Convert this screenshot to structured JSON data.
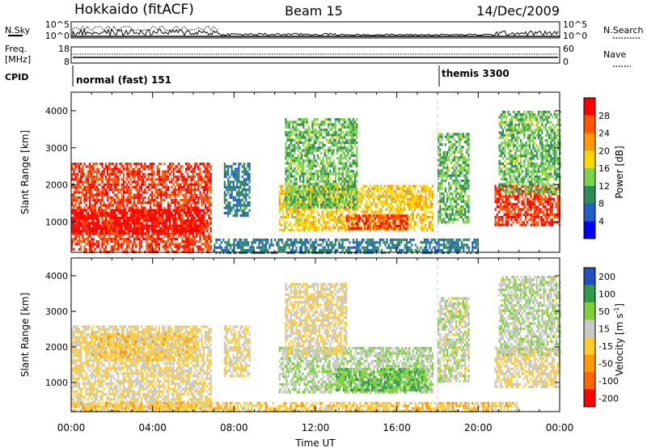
{
  "header": {
    "station": "Hokkaido (fitACF)",
    "beam": "Beam 15",
    "date": "14/Dec/2009"
  },
  "top_panels": {
    "nsky_label": "N.Sky",
    "nsky_ticks": [
      "10^5",
      "10^0"
    ],
    "nsearch_label": "N.Search",
    "nsearch_ticks": [
      "10^5",
      "10^0"
    ],
    "freq_label_line1": "Freq.",
    "freq_label_line2": "[MHz]",
    "freq_ticks": [
      "18",
      "8"
    ],
    "nave_label": "Nave",
    "nave_ticks": [
      "60",
      "0"
    ],
    "cpid_label": "CPID",
    "cpid_modes": [
      {
        "name": "normal (fast) 151",
        "start_hour": 0
      },
      {
        "name": "themis 3300",
        "start_hour": 18
      }
    ]
  },
  "colors": {
    "power_scale": [
      "#0000ff",
      "#1f5fc8",
      "#2e8b57",
      "#7cd24a",
      "#ffd700",
      "#ff9900",
      "#ff5500",
      "#ff0000"
    ],
    "velocity_scale": [
      "#ff0000",
      "#ff6600",
      "#ff9900",
      "#ffcc33",
      "#c8c8c8",
      "#7ed03a",
      "#2e9b4a",
      "#2550c0"
    ],
    "ground_scatter": "#c0c0c0",
    "frame": "#000000"
  },
  "chart_data": [
    {
      "type": "heatmap",
      "name": "power",
      "xlabel": "Time UT",
      "ylabel": "Slant Range [km]",
      "xlim": [
        0,
        24
      ],
      "ylim": [
        180,
        4500
      ],
      "x_ticks": [
        "00:00",
        "04:00",
        "08:00",
        "12:00",
        "16:00",
        "20:00",
        "00:00"
      ],
      "y_ticks": [
        1000,
        2000,
        3000,
        4000
      ],
      "colorbar_label": "Power [dB]",
      "colorbar_ticks": [
        "4",
        "8",
        "12",
        "16",
        "20",
        "24",
        "28"
      ],
      "colorbar_range": [
        0,
        30
      ],
      "regions": [
        {
          "t0": 0.0,
          "t1": 6.9,
          "r0": 200,
          "r1": 2600,
          "value": 26
        },
        {
          "t0": 0.0,
          "t1": 6.5,
          "r0": 700,
          "r1": 1350,
          "value": 29
        },
        {
          "t0": 7.5,
          "t1": 8.8,
          "r0": 1200,
          "r1": 2600,
          "value": 8
        },
        {
          "t0": 10.2,
          "t1": 17.8,
          "r0": 750,
          "r1": 2000,
          "value": 18
        },
        {
          "t0": 10.5,
          "t1": 14.0,
          "r0": 1400,
          "r1": 3800,
          "value": 12
        },
        {
          "t0": 13.5,
          "t1": 16.5,
          "r0": 800,
          "r1": 1200,
          "value": 26
        },
        {
          "t0": 7.0,
          "t1": 20.0,
          "r0": 200,
          "r1": 550,
          "value": 8
        },
        {
          "t0": 18.0,
          "t1": 19.5,
          "r0": 1000,
          "r1": 3400,
          "value": 12
        },
        {
          "t0": 20.8,
          "t1": 24.0,
          "r0": 900,
          "r1": 2000,
          "value": 26
        },
        {
          "t0": 21.0,
          "t1": 24.0,
          "r0": 1800,
          "r1": 4000,
          "value": 12
        }
      ]
    },
    {
      "type": "heatmap",
      "name": "velocity",
      "xlabel": "Time UT",
      "ylabel": "Slant Range [km]",
      "xlim": [
        0,
        24
      ],
      "ylim": [
        180,
        4500
      ],
      "x_ticks": [
        "00:00",
        "04:00",
        "08:00",
        "12:00",
        "16:00",
        "20:00",
        "00:00"
      ],
      "y_ticks": [
        1000,
        2000,
        3000,
        4000
      ],
      "colorbar_label": "Velocity [m s",
      "colorbar_label_sup": "-1",
      "colorbar_ticks": [
        "200",
        "100",
        "50",
        "15",
        "-15",
        "-50",
        "-100",
        "-200"
      ],
      "colorbar_range": [
        -250,
        250
      ],
      "regions": [
        {
          "t0": 0.0,
          "t1": 6.9,
          "r0": 300,
          "r1": 2600,
          "value": 0
        },
        {
          "t0": 1.0,
          "t1": 6.0,
          "r0": 1600,
          "r1": 2400,
          "value": -30
        },
        {
          "t0": 7.5,
          "t1": 8.8,
          "r0": 1200,
          "r1": 2600,
          "value": 0
        },
        {
          "t0": 10.2,
          "t1": 17.8,
          "r0": 750,
          "r1": 2000,
          "value": 60
        },
        {
          "t0": 10.5,
          "t1": 13.5,
          "r0": 1800,
          "r1": 3800,
          "value": 0
        },
        {
          "t0": 13.0,
          "t1": 17.5,
          "r0": 800,
          "r1": 1400,
          "value": 120
        },
        {
          "t0": 0.0,
          "t1": 22.0,
          "r0": 200,
          "r1": 450,
          "value": -40
        },
        {
          "t0": 18.0,
          "t1": 19.5,
          "r0": 1000,
          "r1": 3400,
          "value": 40
        },
        {
          "t0": 20.8,
          "t1": 24.0,
          "r0": 900,
          "r1": 2000,
          "value": 0
        },
        {
          "t0": 21.0,
          "t1": 24.0,
          "r0": 1800,
          "r1": 4000,
          "value": 50
        }
      ]
    }
  ]
}
